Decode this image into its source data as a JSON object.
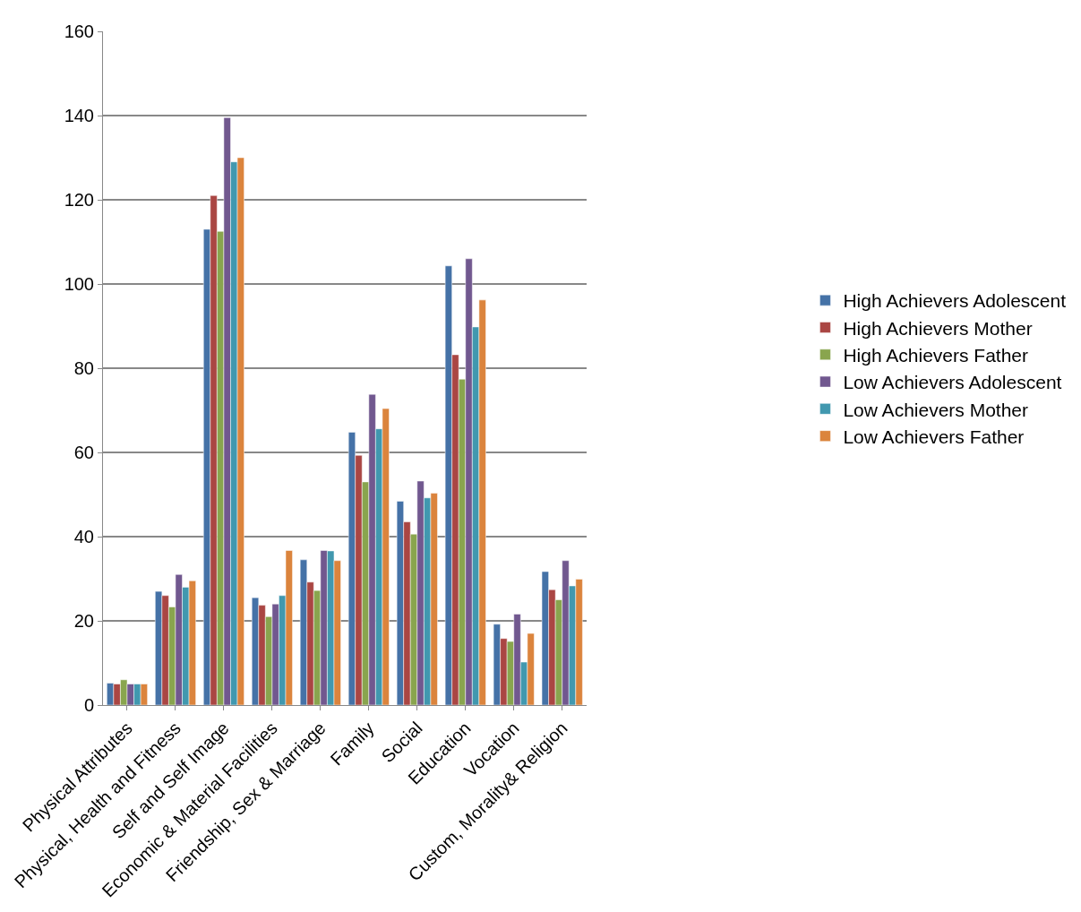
{
  "chart_data": {
    "type": "bar",
    "categories": [
      "Physical Attributes",
      "Physical, Health and Fitness",
      "Self and Self Image",
      "Economic & Material Facilities",
      "Friendship, Sex & Marriage",
      "Family",
      "Social",
      "Education",
      "Vocation",
      "Custom, Morality& Religion"
    ],
    "series": [
      {
        "name": "High Achievers Adolescent",
        "color": "#4572a7",
        "values": [
          5.2,
          27,
          113,
          25.5,
          34.5,
          64.8,
          48.4,
          104.3,
          19.2,
          31.7
        ]
      },
      {
        "name": "High Achievers Mother",
        "color": "#aa4643",
        "values": [
          5,
          26,
          121,
          23.7,
          29.2,
          59.3,
          43.5,
          83.2,
          15.8,
          27.4
        ]
      },
      {
        "name": "High Achievers Father",
        "color": "#89a54e",
        "values": [
          6,
          23.3,
          112.5,
          21,
          27.2,
          53,
          40.6,
          77.4,
          15.1,
          25
        ]
      },
      {
        "name": "Low Achievers Adolescent",
        "color": "#71588f",
        "values": [
          5,
          31,
          139.5,
          24,
          36.7,
          73.8,
          53.2,
          106,
          21.6,
          34.3
        ]
      },
      {
        "name": "Low Achievers Mother",
        "color": "#4198af",
        "values": [
          5,
          28,
          129,
          26,
          36.6,
          65.6,
          49.2,
          89.8,
          10.2,
          28.3
        ]
      },
      {
        "name": "Low Achievers Father",
        "color": "#db843d",
        "values": [
          5,
          29.5,
          130,
          36.7,
          34.3,
          70.4,
          50.3,
          96.2,
          17,
          29.9
        ]
      }
    ],
    "ylim": [
      0,
      160
    ],
    "yticks": [
      0,
      20,
      40,
      60,
      80,
      100,
      120,
      140,
      160
    ],
    "grid": "y",
    "legend": "right"
  }
}
